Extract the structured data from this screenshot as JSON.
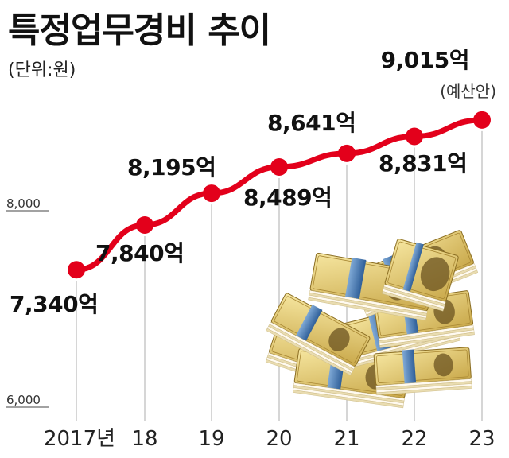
{
  "title": "특정업무경비 추이",
  "unit_label": "(단위:원)",
  "chart_data": {
    "type": "line",
    "categories": [
      "2017년",
      "18",
      "19",
      "20",
      "21",
      "22",
      "23"
    ],
    "values": [
      7340,
      7840,
      8195,
      8489,
      8641,
      8831,
      9015
    ],
    "data_labels": [
      "7,340억",
      "7,840억",
      "8,195억",
      "8,489억",
      "8,641억",
      "8,831억",
      "9,015억"
    ],
    "annotation": "(예산안)",
    "yticks": [
      {
        "value": 8000,
        "label": "8,000"
      },
      {
        "value": 6000,
        "label": "6,000"
      }
    ],
    "ylim": [
      6000,
      9015
    ],
    "line_color": "#e3001b",
    "gridline_color": "#bbbbbb"
  }
}
